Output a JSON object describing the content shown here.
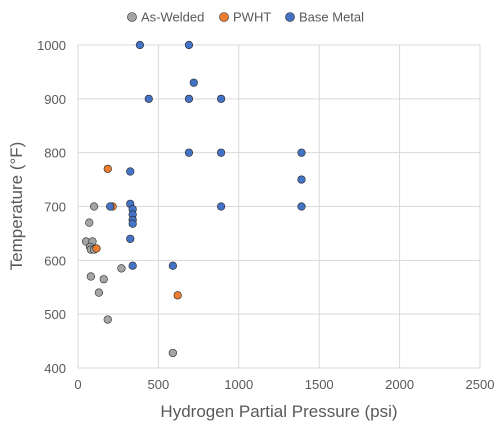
{
  "chart_data": {
    "type": "scatter",
    "title": "",
    "xlabel": "Hydrogen Partial Pressure (psi)",
    "ylabel": "Temperature (°F)",
    "xlim": [
      0,
      2500
    ],
    "ylim": [
      400,
      1000
    ],
    "x_ticks": [
      "0",
      "500",
      "1000",
      "1500",
      "2000",
      "2500"
    ],
    "y_ticks": [
      "400",
      "500",
      "600",
      "700",
      "800",
      "900",
      "1000"
    ],
    "grid": "vertical and horizontal major gridlines",
    "legend_position": "top",
    "series": [
      {
        "name": "As-Welded",
        "color": "#a5a5a5",
        "points": [
          [
            100,
            700
          ],
          [
            70,
            670
          ],
          [
            50,
            635
          ],
          [
            90,
            635
          ],
          [
            75,
            625
          ],
          [
            80,
            620
          ],
          [
            100,
            620
          ],
          [
            80,
            570
          ],
          [
            160,
            565
          ],
          [
            270,
            585
          ],
          [
            130,
            540
          ],
          [
            185,
            490
          ],
          [
            590,
            428
          ]
        ]
      },
      {
        "name": "PWHT",
        "color": "#ed7d31",
        "points": [
          [
            185,
            770
          ],
          [
            215,
            700
          ],
          [
            115,
            622
          ],
          [
            620,
            535
          ]
        ]
      },
      {
        "name": "Base Metal",
        "color": "#4472c4",
        "points": [
          [
            385,
            1000
          ],
          [
            690,
            1000
          ],
          [
            720,
            930
          ],
          [
            440,
            900
          ],
          [
            690,
            900
          ],
          [
            890,
            900
          ],
          [
            690,
            800
          ],
          [
            890,
            800
          ],
          [
            1390,
            800
          ],
          [
            1390,
            750
          ],
          [
            325,
            765
          ],
          [
            325,
            705
          ],
          [
            340,
            695
          ],
          [
            340,
            685
          ],
          [
            340,
            675
          ],
          [
            340,
            668
          ],
          [
            200,
            700
          ],
          [
            890,
            700
          ],
          [
            1390,
            700
          ],
          [
            325,
            640
          ],
          [
            340,
            590
          ],
          [
            590,
            590
          ]
        ]
      }
    ]
  }
}
